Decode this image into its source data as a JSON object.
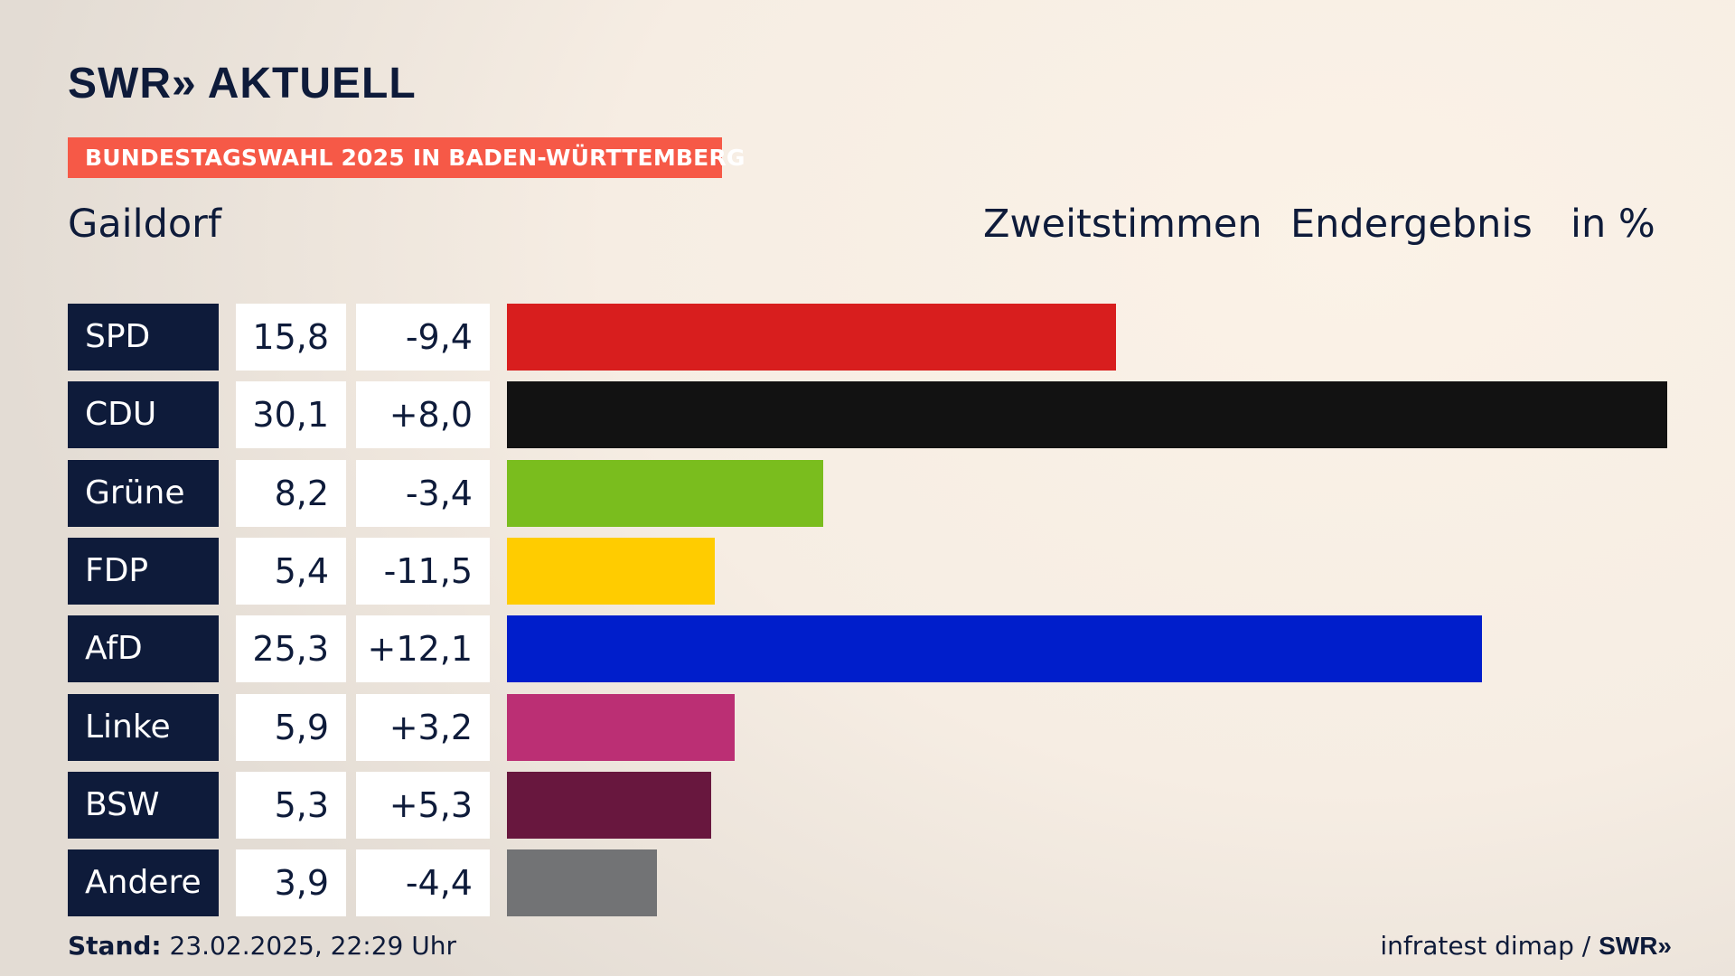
{
  "brand": {
    "name": "SWR",
    "chevrons": "»",
    "product": "AKTUELL"
  },
  "tag": "BUNDESTAGSWAHL 2025 IN BADEN-WÜRTTEMBERG",
  "place": "Gaildorf",
  "header": {
    "vote_type": "Zweitstimmen",
    "status": "Endergebnis",
    "unit": "in %"
  },
  "chart_data": {
    "type": "bar",
    "orientation": "horizontal",
    "categories": [
      "SPD",
      "CDU",
      "Grüne",
      "FDP",
      "AfD",
      "Linke",
      "BSW",
      "Andere"
    ],
    "values": [
      15.8,
      30.1,
      8.2,
      5.4,
      25.3,
      5.9,
      5.3,
      3.9
    ],
    "value_labels": [
      "15,8",
      "30,1",
      "8,2",
      "5,4",
      "25,3",
      "5,9",
      "5,3",
      "3,9"
    ],
    "changes": [
      -9.4,
      8.0,
      -3.4,
      -11.5,
      12.1,
      3.2,
      5.3,
      -4.4
    ],
    "change_labels": [
      "-9,4",
      "+8,0",
      "-3,4",
      "-11,5",
      "+12,1",
      "+3,2",
      "+5,3",
      "-4,4"
    ],
    "colors": [
      "#d81e1e",
      "#121212",
      "#7abd1e",
      "#ffcc00",
      "#001ecb",
      "#bb2f74",
      "#68173e",
      "#727375"
    ],
    "xlim": [
      0,
      30.1
    ]
  },
  "footer": {
    "stand_label": "Stand:",
    "stand_value": "23.02.2025, 22:29 Uhr",
    "source_text": "infratest dimap /",
    "source_brand": "SWR",
    "source_chevrons": "»"
  }
}
